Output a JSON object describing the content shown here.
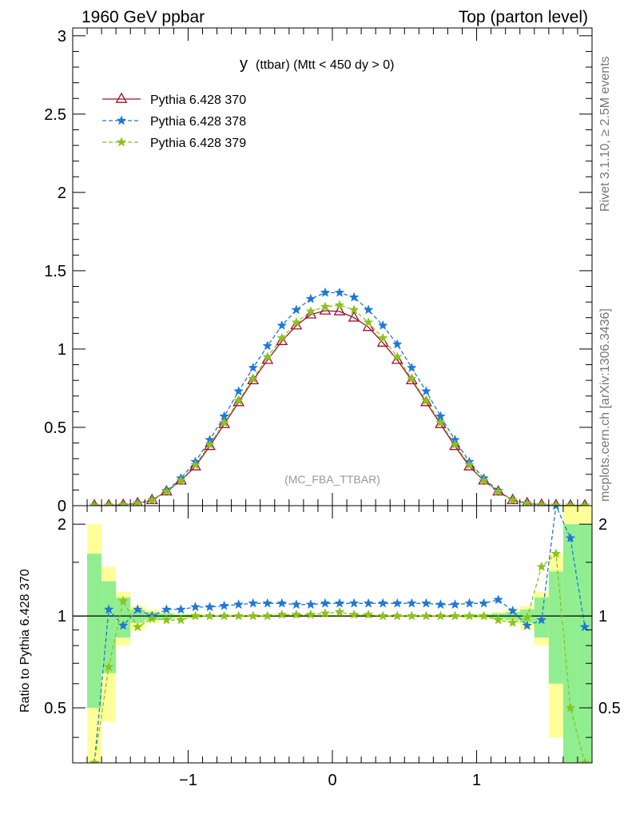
{
  "header": {
    "left": "1960 GeV ppbar",
    "right": "Top (parton level)"
  },
  "side_text": {
    "top": "Rivet 3.1.10, ≥ 2.5M events",
    "bottom": "mcplots.cern.ch [arXiv:1306.3436]"
  },
  "chart_data": {
    "type": "line",
    "title": "y (ttbar) (Mtt < 450 dy > 0)",
    "title_main": "y",
    "title_rest": "(ttbar) (Mtt < 450 dy > 0)",
    "watermark": "(MC_FBA_TTBAR)",
    "ratio_ylabel": "Ratio to Pythia 6.428 370",
    "xlim": [
      -1.8,
      1.8
    ],
    "ylim_main": [
      0,
      3.05
    ],
    "ylim_ratio": [
      0.33,
      2.3
    ],
    "main_yticks": [
      "0",
      "0.5",
      "1",
      "1.5",
      "2",
      "2.5",
      "3"
    ],
    "ratio_yticks": [
      "0.5",
      "1",
      "2"
    ],
    "xticks": [
      "−1",
      "0",
      "1"
    ],
    "legend_position": "top-left",
    "x": [
      -1.65,
      -1.55,
      -1.45,
      -1.35,
      -1.25,
      -1.15,
      -1.05,
      -0.95,
      -0.85,
      -0.75,
      -0.65,
      -0.55,
      -0.45,
      -0.35,
      -0.25,
      -0.15,
      -0.05,
      0.05,
      0.15,
      0.25,
      0.35,
      0.45,
      0.55,
      0.65,
      0.75,
      0.85,
      0.95,
      1.05,
      1.15,
      1.25,
      1.35,
      1.45,
      1.55,
      1.65,
      1.75
    ],
    "series": [
      {
        "name": "Pythia 6.428 370",
        "color": "#a0102a",
        "marker": "triangle-open",
        "dash": "solid",
        "values": [
          0.001,
          0.002,
          0.005,
          0.015,
          0.035,
          0.09,
          0.16,
          0.25,
          0.38,
          0.52,
          0.66,
          0.8,
          0.93,
          1.05,
          1.15,
          1.22,
          1.245,
          1.24,
          1.2,
          1.14,
          1.04,
          0.93,
          0.8,
          0.66,
          0.52,
          0.38,
          0.25,
          0.16,
          0.09,
          0.035,
          0.015,
          0.005,
          0.002,
          0.001,
          0.001
        ],
        "ratio": [
          1,
          1,
          1,
          1,
          1,
          1,
          1,
          1,
          1,
          1,
          1,
          1,
          1,
          1,
          1,
          1,
          1,
          1,
          1,
          1,
          1,
          1,
          1,
          1,
          1,
          1,
          1,
          1,
          1,
          1,
          1,
          1,
          1,
          1,
          1
        ]
      },
      {
        "name": "Pythia 6.428 378",
        "color": "#1f78d8",
        "marker": "star",
        "dash": "dashed",
        "values": [
          0.001,
          0.002,
          0.005,
          0.016,
          0.035,
          0.095,
          0.175,
          0.28,
          0.42,
          0.57,
          0.73,
          0.88,
          1.02,
          1.15,
          1.25,
          1.32,
          1.36,
          1.36,
          1.33,
          1.25,
          1.15,
          1.03,
          0.88,
          0.73,
          0.57,
          0.42,
          0.28,
          0.175,
          0.095,
          0.035,
          0.016,
          0.005,
          0.002,
          0.002,
          0.001
        ],
        "ratio": [
          0.2,
          1.05,
          0.93,
          1.05,
          1.0,
          1.05,
          1.05,
          1.07,
          1.07,
          1.08,
          1.09,
          1.1,
          1.1,
          1.1,
          1.09,
          1.09,
          1.1,
          1.1,
          1.1,
          1.1,
          1.1,
          1.1,
          1.1,
          1.1,
          1.09,
          1.09,
          1.1,
          1.1,
          1.13,
          1.04,
          0.93,
          0.97,
          2.3,
          1.8,
          0.92
        ]
      },
      {
        "name": "Pythia 6.428 379",
        "color": "#8cc21e",
        "marker": "star",
        "dash": "dashed",
        "values": [
          0.001,
          0.002,
          0.005,
          0.015,
          0.035,
          0.09,
          0.16,
          0.26,
          0.39,
          0.53,
          0.67,
          0.81,
          0.95,
          1.07,
          1.17,
          1.24,
          1.27,
          1.28,
          1.25,
          1.17,
          1.07,
          0.95,
          0.81,
          0.67,
          0.53,
          0.39,
          0.26,
          0.16,
          0.09,
          0.035,
          0.015,
          0.005,
          0.002,
          0.001,
          0.001
        ],
        "ratio": [
          0.3,
          0.68,
          1.12,
          0.92,
          0.98,
          0.97,
          0.97,
          1.0,
          1.0,
          1.0,
          1.0,
          1.0,
          1.0,
          1.01,
          1.01,
          1.01,
          1.02,
          1.03,
          1.01,
          1.01,
          1.0,
          1.0,
          1.0,
          1.0,
          1.0,
          1.0,
          1.0,
          1.0,
          0.97,
          0.95,
          0.99,
          1.45,
          1.6,
          0.5,
          0.3
        ]
      }
    ],
    "uncertainty_bands": {
      "x_edges": [
        -1.7,
        -1.6,
        -1.5,
        -1.4,
        -1.3,
        -1.2,
        -1.1,
        -1.0,
        -0.9,
        -0.8,
        -0.7,
        -0.6,
        -0.5,
        -0.4,
        -0.3,
        -0.2,
        -0.1,
        0.0,
        0.1,
        0.2,
        0.3,
        0.4,
        0.5,
        0.6,
        0.7,
        0.8,
        0.9,
        1.0,
        1.1,
        1.2,
        1.3,
        1.4,
        1.5,
        1.6,
        1.7,
        1.8
      ],
      "inner": [
        [
          0.5,
          1.6
        ],
        [
          0.65,
          1.3
        ],
        [
          0.85,
          1.15
        ],
        [
          0.95,
          1.05
        ],
        [
          0.97,
          1.03
        ],
        [
          0.98,
          1.02
        ],
        [
          0.99,
          1.01
        ],
        [
          0.99,
          1.01
        ],
        [
          0.995,
          1.005
        ],
        [
          0.995,
          1.005
        ],
        [
          0.995,
          1.005
        ],
        [
          0.995,
          1.005
        ],
        [
          0.995,
          1.005
        ],
        [
          0.995,
          1.005
        ],
        [
          0.995,
          1.005
        ],
        [
          0.995,
          1.005
        ],
        [
          0.995,
          1.005
        ],
        [
          0.995,
          1.005
        ],
        [
          0.995,
          1.005
        ],
        [
          0.995,
          1.005
        ],
        [
          0.995,
          1.005
        ],
        [
          0.995,
          1.005
        ],
        [
          0.995,
          1.005
        ],
        [
          0.995,
          1.005
        ],
        [
          0.995,
          1.005
        ],
        [
          0.995,
          1.005
        ],
        [
          0.99,
          1.01
        ],
        [
          0.99,
          1.01
        ],
        [
          0.98,
          1.02
        ],
        [
          0.97,
          1.03
        ],
        [
          0.95,
          1.05
        ],
        [
          0.85,
          1.15
        ],
        [
          0.6,
          1.4
        ],
        [
          0.3,
          2.0
        ],
        [
          0.3,
          2.0
        ]
      ],
      "outer": [
        [
          0.3,
          2.0
        ],
        [
          0.45,
          1.45
        ],
        [
          0.8,
          1.2
        ],
        [
          0.9,
          1.08
        ],
        [
          0.95,
          1.05
        ],
        [
          0.97,
          1.03
        ],
        [
          0.98,
          1.02
        ],
        [
          0.98,
          1.02
        ],
        [
          0.99,
          1.01
        ],
        [
          0.99,
          1.01
        ],
        [
          0.99,
          1.01
        ],
        [
          0.99,
          1.01
        ],
        [
          0.99,
          1.01
        ],
        [
          0.99,
          1.01
        ],
        [
          0.99,
          1.01
        ],
        [
          0.99,
          1.01
        ],
        [
          0.99,
          1.01
        ],
        [
          0.99,
          1.01
        ],
        [
          0.99,
          1.01
        ],
        [
          0.99,
          1.01
        ],
        [
          0.99,
          1.01
        ],
        [
          0.99,
          1.01
        ],
        [
          0.99,
          1.01
        ],
        [
          0.99,
          1.01
        ],
        [
          0.99,
          1.01
        ],
        [
          0.99,
          1.01
        ],
        [
          0.98,
          1.02
        ],
        [
          0.98,
          1.02
        ],
        [
          0.97,
          1.03
        ],
        [
          0.95,
          1.05
        ],
        [
          0.9,
          1.08
        ],
        [
          0.8,
          1.2
        ],
        [
          0.4,
          1.6
        ],
        [
          0.3,
          2.3
        ],
        [
          0.3,
          2.3
        ]
      ]
    }
  }
}
